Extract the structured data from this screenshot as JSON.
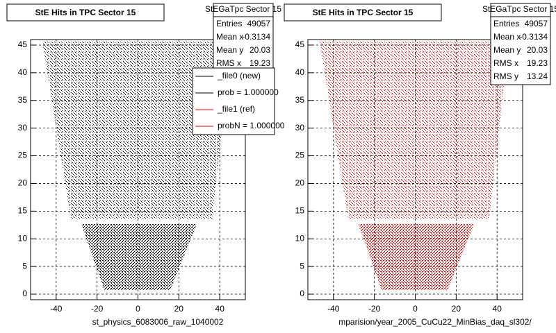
{
  "chart_data": [
    {
      "type": "scatter",
      "title": "StE Hits in TPC Sector 15",
      "xlabel": "st_physics_6083006_raw_1040002",
      "color": "#000000",
      "xlim": [
        -52.5,
        52.5
      ],
      "ylim": [
        -1,
        46
      ],
      "xticks": [
        -40,
        -20,
        0,
        20,
        40
      ],
      "yticks": [
        0,
        5,
        10,
        15,
        20,
        25,
        30,
        35,
        40,
        45
      ],
      "grid": true,
      "stats": {
        "title": "StEGaTpc Sector 15",
        "rows": [
          {
            "label": "Entries",
            "value": 49057
          },
          {
            "label": "Mean x",
            "value": -0.3134
          },
          {
            "label": "Mean y",
            "value": 20.03
          },
          {
            "label": "RMS x",
            "value": 19.23
          }
        ]
      },
      "legend": [
        {
          "name": "_file0 (new)",
          "color": "#000000"
        },
        {
          "name": "prob = 1.000000",
          "color": "#000000"
        },
        {
          "name": "_file1 (ref)",
          "color": "#ff0000"
        },
        {
          "name": "probN = 1.000000",
          "color": "#ff0000"
        }
      ]
    },
    {
      "type": "scatter",
      "title": "StE Hits in TPC Sector 15",
      "xlabel": "mparision/year_2005_CuCu22_MinBias_daq_sl302/",
      "color": "#ff0000",
      "xlim": [
        -52.5,
        52.5
      ],
      "ylim": [
        -1,
        46
      ],
      "xticks": [
        -40,
        -20,
        0,
        20,
        40
      ],
      "yticks": [
        0,
        5,
        10,
        15,
        20,
        25,
        30,
        35,
        40,
        45
      ],
      "grid": true,
      "stats": {
        "title": "StEGaTpc Sector 15",
        "rows": [
          {
            "label": "Entries",
            "value": 49057
          },
          {
            "label": "Mean x",
            "value": -0.3134
          },
          {
            "label": "Mean y",
            "value": 20.03
          },
          {
            "label": "RMS x",
            "value": 19.23
          },
          {
            "label": "RMS y",
            "value": 13.24
          }
        ]
      }
    }
  ]
}
